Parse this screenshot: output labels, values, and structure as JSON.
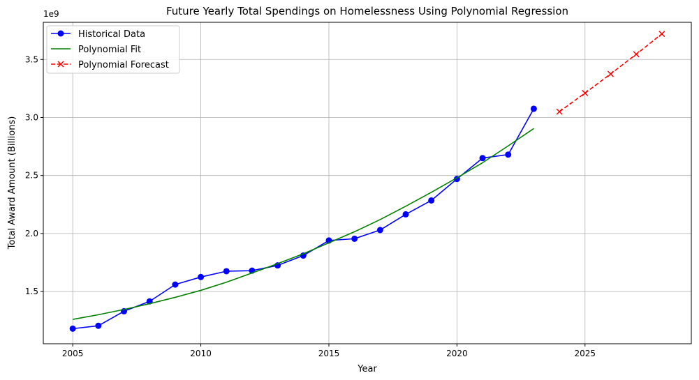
{
  "chart_data": {
    "type": "line",
    "title": "Future Yearly Total Spendings on Homelessness Using Polynomial Regression",
    "xlabel": "Year",
    "ylabel": "Total Award Amount (Billions)",
    "y_offset_text": "1e9",
    "xlim": [
      2003.85,
      2029.15
    ],
    "ylim": [
      1050000000.0,
      3820000000.0
    ],
    "x_ticks": [
      2005,
      2010,
      2015,
      2020,
      2025
    ],
    "x_tick_labels": [
      "2005",
      "2010",
      "2015",
      "2020",
      "2025"
    ],
    "y_ticks": [
      1500000000.0,
      2000000000.0,
      2500000000.0,
      3000000000.0,
      3500000000.0
    ],
    "y_tick_labels": [
      "1.5",
      "2.0",
      "2.5",
      "3.0",
      "3.5"
    ],
    "grid": true,
    "legend_position": "top-left",
    "series": [
      {
        "name": "Historical Data",
        "color": "#0000ff",
        "style": "solid",
        "marker": "circle",
        "x": [
          2005,
          2006,
          2007,
          2008,
          2009,
          2010,
          2011,
          2012,
          2013,
          2014,
          2015,
          2016,
          2017,
          2018,
          2019,
          2020,
          2021,
          2022,
          2023
        ],
        "y": [
          1180000000.0,
          1205000000.0,
          1330000000.0,
          1415000000.0,
          1560000000.0,
          1625000000.0,
          1675000000.0,
          1680000000.0,
          1725000000.0,
          1810000000.0,
          1940000000.0,
          1955000000.0,
          2030000000.0,
          2165000000.0,
          2285000000.0,
          2470000000.0,
          2650000000.0,
          2680000000.0,
          3075000000.0
        ]
      },
      {
        "name": "Polynomial Fit",
        "color": "#008000",
        "style": "solid",
        "marker": "none",
        "x": [
          2005,
          2006,
          2007,
          2008,
          2009,
          2010,
          2011,
          2012,
          2013,
          2014,
          2015,
          2016,
          2017,
          2018,
          2019,
          2020,
          2021,
          2022,
          2023
        ],
        "y": [
          1260000000.0,
          1300000000.0,
          1345000000.0,
          1395000000.0,
          1450000000.0,
          1510000000.0,
          1580000000.0,
          1660000000.0,
          1740000000.0,
          1825000000.0,
          1920000000.0,
          2015000000.0,
          2120000000.0,
          2235000000.0,
          2355000000.0,
          2480000000.0,
          2610000000.0,
          2755000000.0,
          2905000000.0
        ]
      },
      {
        "name": "Polynomial Forecast",
        "color": "#ff0000",
        "style": "dashed",
        "marker": "x",
        "x": [
          2024,
          2025,
          2026,
          2027,
          2028
        ],
        "y": [
          3050000000.0,
          3210000000.0,
          3375000000.0,
          3545000000.0,
          3720000000.0
        ]
      }
    ]
  }
}
